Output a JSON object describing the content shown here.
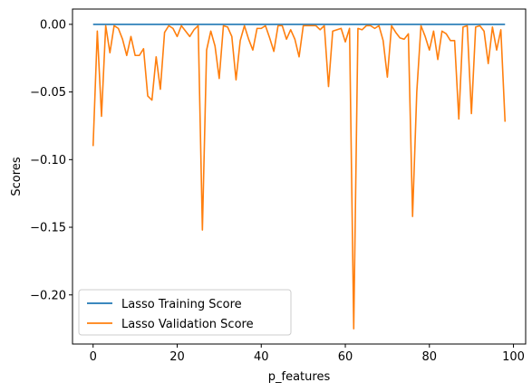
{
  "chart_data": {
    "type": "line",
    "title": "",
    "xlabel": "p_features",
    "ylabel": "Scores",
    "xlim": [
      -4.9,
      102.9
    ],
    "ylim": [
      -0.2363,
      0.0113
    ],
    "x_ticks": [
      0,
      20,
      40,
      60,
      80,
      100
    ],
    "x_tick_labels": [
      "0",
      "20",
      "40",
      "60",
      "80",
      "100"
    ],
    "y_ticks": [
      0.0,
      -0.05,
      -0.1,
      -0.15,
      -0.2
    ],
    "y_tick_labels": [
      "0.00",
      "−0.05",
      "−0.10",
      "−0.15",
      "−0.20"
    ],
    "grid": false,
    "legend_placement": "lower-left",
    "series": [
      {
        "name": "Lasso Training Score",
        "color": "#1f77b4",
        "x": [
          0,
          98
        ],
        "y": [
          0.0,
          0.0
        ]
      },
      {
        "name": "Lasso Validation Score",
        "color": "#ff7f0e",
        "x": [
          0,
          1,
          2,
          3,
          4,
          5,
          6,
          7,
          8,
          9,
          10,
          11,
          12,
          13,
          14,
          15,
          16,
          17,
          18,
          19,
          20,
          21,
          22,
          23,
          24,
          25,
          26,
          27,
          28,
          29,
          30,
          31,
          32,
          33,
          34,
          35,
          36,
          37,
          38,
          39,
          40,
          41,
          42,
          43,
          44,
          45,
          46,
          47,
          48,
          49,
          50,
          51,
          52,
          53,
          54,
          55,
          56,
          57,
          58,
          59,
          60,
          61,
          62,
          63,
          64,
          65,
          66,
          67,
          68,
          69,
          70,
          71,
          72,
          73,
          74,
          75,
          76,
          77,
          78,
          79,
          80,
          81,
          82,
          83,
          84,
          85,
          86,
          87,
          88,
          89,
          90,
          91,
          92,
          93,
          94,
          95,
          96,
          97,
          98
        ],
        "y": [
          -0.09,
          -0.005,
          -0.068,
          -0.001,
          -0.021,
          -0.001,
          -0.003,
          -0.011,
          -0.023,
          -0.009,
          -0.023,
          -0.023,
          -0.018,
          -0.053,
          -0.056,
          -0.024,
          -0.048,
          -0.006,
          -0.001,
          -0.003,
          -0.009,
          -0.001,
          -0.005,
          -0.009,
          -0.004,
          -0.001,
          -0.152,
          -0.019,
          -0.005,
          -0.016,
          -0.04,
          -0.001,
          -0.002,
          -0.009,
          -0.041,
          -0.012,
          -0.001,
          -0.011,
          -0.019,
          -0.003,
          -0.003,
          -0.001,
          -0.01,
          -0.02,
          -0.001,
          -0.001,
          -0.011,
          -0.004,
          -0.011,
          -0.024,
          -0.001,
          -0.001,
          -0.001,
          -0.001,
          -0.004,
          -0.001,
          -0.046,
          -0.005,
          -0.004,
          -0.003,
          -0.013,
          -0.003,
          -0.225,
          -0.003,
          -0.004,
          -0.001,
          -0.001,
          -0.003,
          -0.001,
          -0.012,
          -0.039,
          -0.001,
          -0.006,
          -0.01,
          -0.011,
          -0.007,
          -0.142,
          -0.05,
          -0.001,
          -0.009,
          -0.019,
          -0.005,
          -0.026,
          -0.005,
          -0.007,
          -0.012,
          -0.012,
          -0.07,
          -0.002,
          -0.001,
          -0.066,
          -0.002,
          -0.001,
          -0.005,
          -0.029,
          -0.002,
          -0.019,
          -0.004,
          -0.072
        ]
      }
    ]
  }
}
